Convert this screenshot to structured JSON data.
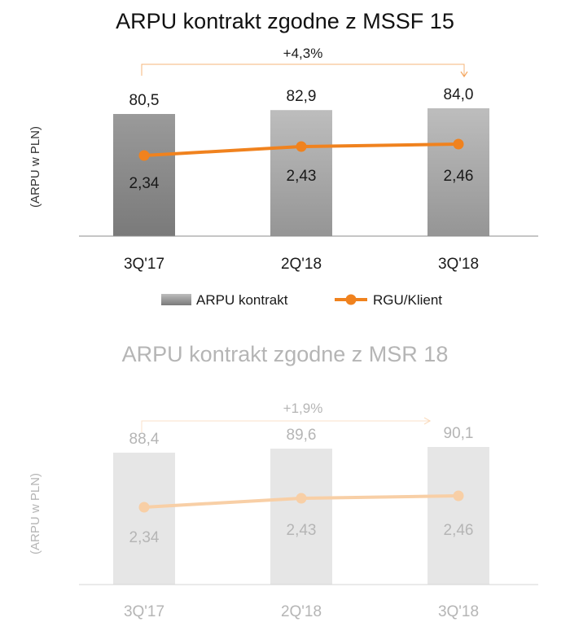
{
  "colors": {
    "bar_dark_top": "#9a9a9a",
    "bar_dark_bottom": "#7a7a7a",
    "bar_light_top": "#bdbdbd",
    "bar_light_bottom": "#959595",
    "bar_faded": "#e6e6e6",
    "line": "#f0821e",
    "line_faded": "#f8cfa6",
    "text": "#1a1a1a",
    "text_faded": "#b5b5b5",
    "axis": "#8c8c8c",
    "axis_faded": "#d4d4d4"
  },
  "chart_data": [
    {
      "type": "bar",
      "title": "ARPU kontrakt zgodne z MSSF 15",
      "ylabel": "(ARPU w PLN)",
      "xlabel": "",
      "categories": [
        "3Q'17",
        "2Q'18",
        "3Q'18"
      ],
      "series": [
        {
          "name": "ARPU kontrakt",
          "type": "bar",
          "values": [
            80.5,
            82.9,
            84.0
          ],
          "labels": [
            "80,5",
            "82,9",
            "84,0"
          ]
        },
        {
          "name": "RGU/Klient",
          "type": "line",
          "values": [
            2.34,
            2.43,
            2.46
          ],
          "labels": [
            "2,34",
            "2,43",
            "2,46"
          ]
        }
      ],
      "growth_annotation": "+4,3%",
      "legend": {
        "position": "bottom",
        "items": [
          "ARPU kontrakt",
          "RGU/Klient"
        ]
      },
      "grid": false,
      "faded": false
    },
    {
      "type": "bar",
      "title": "ARPU kontrakt zgodne z MSR 18",
      "ylabel": "(ARPU w PLN)",
      "xlabel": "",
      "categories": [
        "3Q'17",
        "2Q'18",
        "3Q'18"
      ],
      "series": [
        {
          "name": "ARPU kontrakt",
          "type": "bar",
          "values": [
            88.4,
            89.6,
            90.1
          ],
          "labels": [
            "88,4",
            "89,6",
            "90,1"
          ]
        },
        {
          "name": "RGU/Klient",
          "type": "line",
          "values": [
            2.34,
            2.43,
            2.46
          ],
          "labels": [
            "2,34",
            "2,43",
            "2,46"
          ]
        }
      ],
      "growth_annotation": "+1,9%",
      "grid": false,
      "faded": true
    }
  ]
}
